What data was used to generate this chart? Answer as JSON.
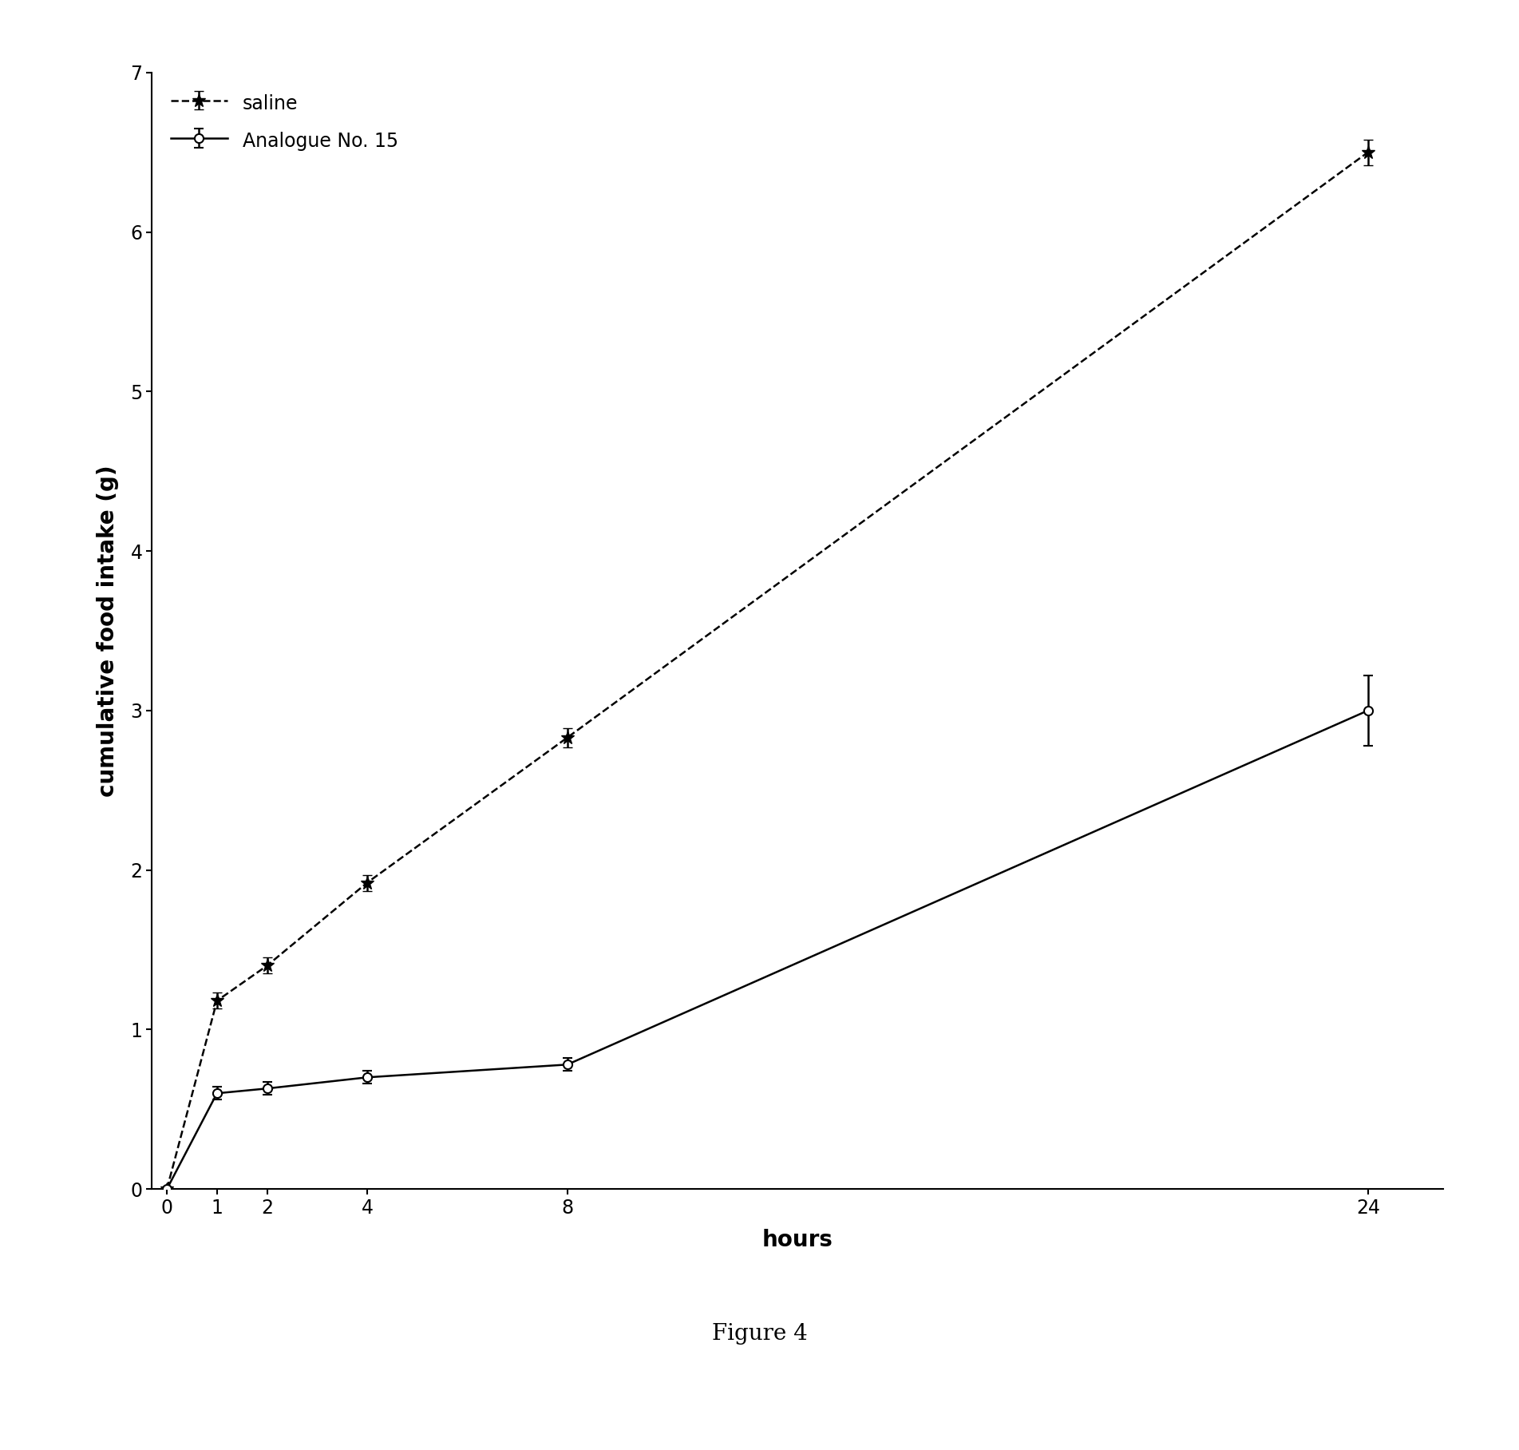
{
  "saline_x": [
    0,
    1,
    2,
    4,
    8,
    24
  ],
  "saline_y": [
    0,
    1.18,
    1.4,
    1.92,
    2.83,
    6.5
  ],
  "saline_yerr": [
    0,
    0.05,
    0.05,
    0.05,
    0.06,
    0.08
  ],
  "analogue_x": [
    0,
    1,
    2,
    4,
    8,
    24
  ],
  "analogue_y": [
    0,
    0.6,
    0.63,
    0.7,
    0.78,
    3.0
  ],
  "analogue_yerr": [
    0,
    0.04,
    0.04,
    0.04,
    0.04,
    0.22
  ],
  "xlabel": "hours",
  "ylabel": "cumulative food intake (g)",
  "ylim": [
    0,
    7
  ],
  "yticks": [
    0,
    1,
    2,
    3,
    4,
    5,
    6,
    7
  ],
  "xticks": [
    0,
    1,
    2,
    4,
    8,
    24
  ],
  "legend_saline": "saline",
  "legend_analogue": "Analogue No. 15",
  "caption": "Figure 4",
  "saline_color": "#000000",
  "analogue_color": "#000000",
  "background_color": "#ffffff",
  "line_width": 1.8,
  "marker_size": 8,
  "font_size_label": 20,
  "font_size_tick": 17,
  "font_size_legend": 17,
  "font_size_caption": 20
}
